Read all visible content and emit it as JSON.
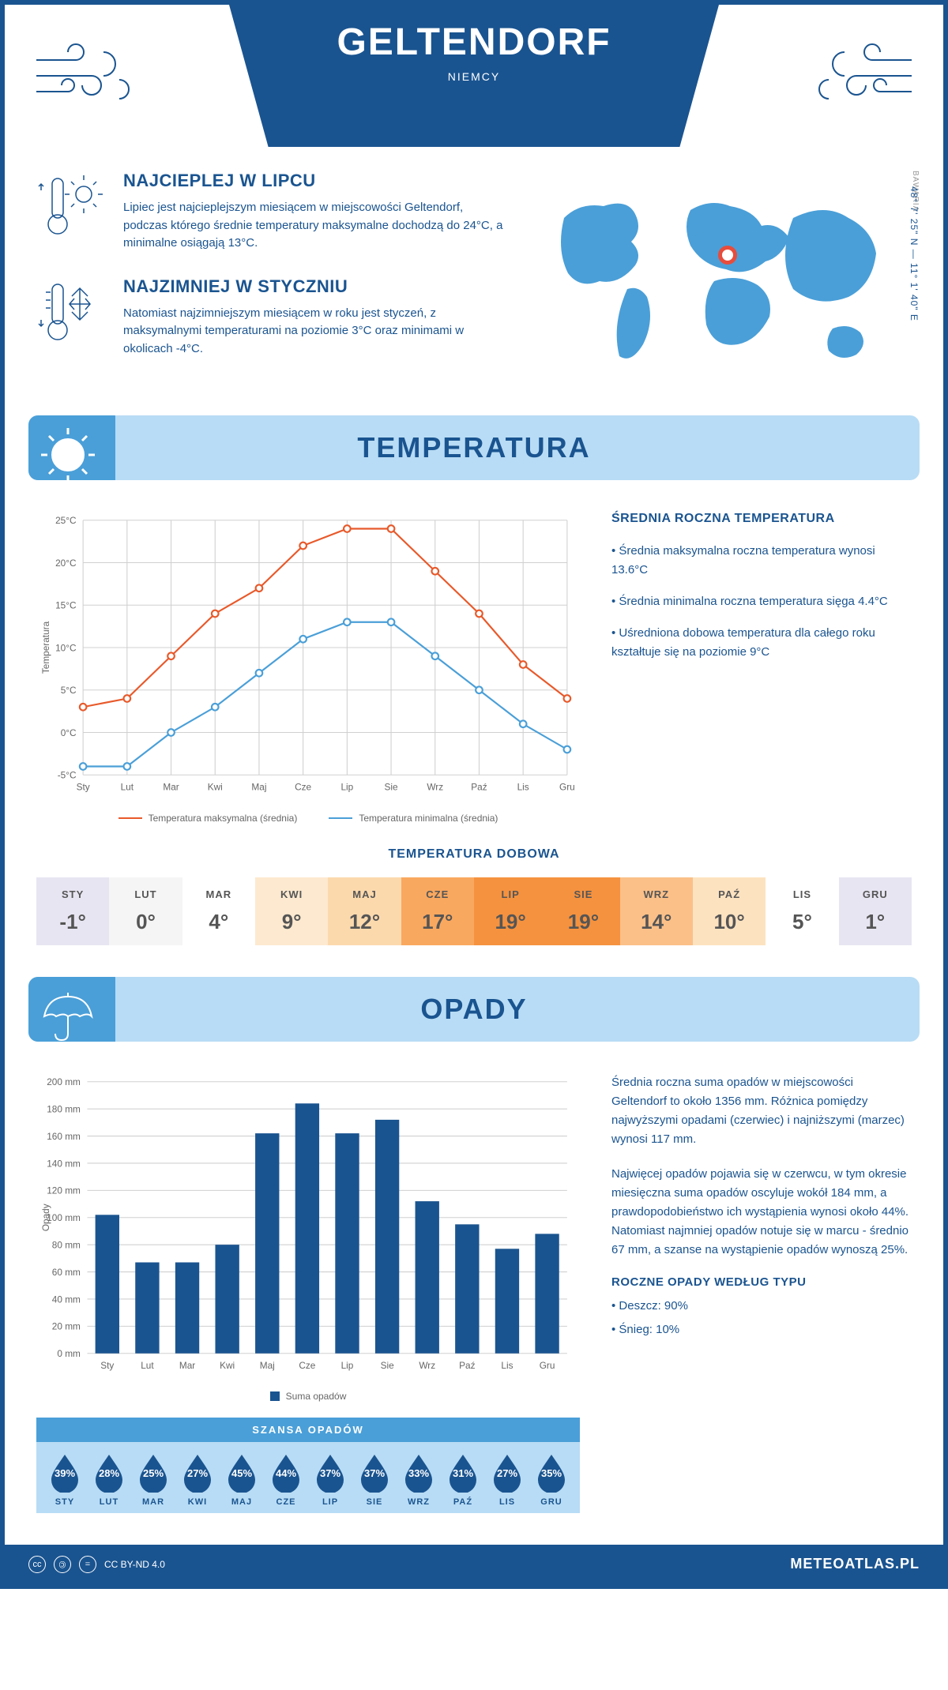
{
  "header": {
    "city": "GELTENDORF",
    "country": "NIEMCY"
  },
  "location": {
    "coords": "48° 7' 25\" N — 11° 1' 40\" E",
    "region": "BAWARIA"
  },
  "info": {
    "warmest": {
      "title": "NAJCIEPLEJ W LIPCU",
      "text": "Lipiec jest najcieplejszym miesiącem w miejscowości Geltendorf, podczas którego średnie temperatury maksymalne dochodzą do 24°C, a minimalne osiągają 13°C."
    },
    "coldest": {
      "title": "NAJZIMNIEJ W STYCZNIU",
      "text": "Natomiast najzimniejszym miesiącem w roku jest styczeń, z maksymalnymi temperaturami na poziomie 3°C oraz minimami w okolicach -4°C."
    }
  },
  "temperature": {
    "section_title": "TEMPERATURA",
    "ylabel": "Temperatura",
    "months": [
      "Sty",
      "Lut",
      "Mar",
      "Kwi",
      "Maj",
      "Cze",
      "Lip",
      "Sie",
      "Wrz",
      "Paź",
      "Lis",
      "Gru"
    ],
    "max_series": [
      3,
      4,
      9,
      14,
      17,
      22,
      24,
      24,
      19,
      14,
      8,
      4
    ],
    "min_series": [
      -4,
      -4,
      0,
      3,
      7,
      11,
      13,
      13,
      9,
      5,
      1,
      -2
    ],
    "max_color": "#e8592a",
    "min_color": "#4a9fd8",
    "ylim": [
      -5,
      25
    ],
    "ytick_step": 5,
    "grid_color": "#d0d0d0",
    "legend_max": "Temperatura maksymalna (średnia)",
    "legend_min": "Temperatura minimalna (średnia)",
    "sidebar": {
      "title": "ŚREDNIA ROCZNA TEMPERATURA",
      "facts": [
        "• Średnia maksymalna roczna temperatura wynosi 13.6°C",
        "• Średnia minimalna roczna temperatura sięga 4.4°C",
        "• Uśredniona dobowa temperatura dla całego roku kształtuje się na poziomie 9°C"
      ]
    }
  },
  "daily_temp": {
    "title": "TEMPERATURA DOBOWA",
    "months": [
      "STY",
      "LUT",
      "MAR",
      "KWI",
      "MAJ",
      "CZE",
      "LIP",
      "SIE",
      "WRZ",
      "PAŹ",
      "LIS",
      "GRU"
    ],
    "values": [
      "-1°",
      "0°",
      "4°",
      "9°",
      "12°",
      "17°",
      "19°",
      "19°",
      "14°",
      "10°",
      "5°",
      "1°"
    ],
    "colors": [
      "#e8e5f2",
      "#f5f5f5",
      "#ffffff",
      "#fde9cf",
      "#fcd9ad",
      "#f9a85f",
      "#f5923f",
      "#f5923f",
      "#fbc088",
      "#fde2c0",
      "#ffffff",
      "#e8e5f2"
    ]
  },
  "precipitation": {
    "section_title": "OPADY",
    "ylabel": "Opady",
    "months": [
      "Sty",
      "Lut",
      "Mar",
      "Kwi",
      "Maj",
      "Cze",
      "Lip",
      "Sie",
      "Wrz",
      "Paź",
      "Lis",
      "Gru"
    ],
    "values": [
      102,
      67,
      67,
      80,
      162,
      184,
      162,
      172,
      112,
      95,
      77,
      88
    ],
    "bar_color": "#1a5490",
    "ylim": [
      0,
      200
    ],
    "ytick_step": 20,
    "grid_color": "#d0d0d0",
    "legend": "Suma opadów",
    "sidebar": {
      "paragraphs": [
        "Średnia roczna suma opadów w miejscowości Geltendorf to około 1356 mm. Różnica pomiędzy najwyższymi opadami (czerwiec) i najniższymi (marzec) wynosi 117 mm.",
        "Najwięcej opadów pojawia się w czerwcu, w tym okresie miesięczna suma opadów oscyluje wokół 184 mm, a prawdopodobieństwo ich wystąpienia wynosi około 44%. Natomiast najmniej opadów notuje się w marcu - średnio 67 mm, a szanse na wystąpienie opadów wynoszą 25%."
      ],
      "types_title": "ROCZNE OPADY WEDŁUG TYPU",
      "types": [
        "• Deszcz: 90%",
        "• Śnieg: 10%"
      ]
    }
  },
  "chance": {
    "title": "SZANSA OPADÓW",
    "months": [
      "STY",
      "LUT",
      "MAR",
      "KWI",
      "MAJ",
      "CZE",
      "LIP",
      "SIE",
      "WRZ",
      "PAŹ",
      "LIS",
      "GRU"
    ],
    "values": [
      "39%",
      "28%",
      "25%",
      "27%",
      "45%",
      "44%",
      "37%",
      "37%",
      "33%",
      "31%",
      "27%",
      "35%"
    ],
    "drop_color": "#1a5490",
    "bg_color": "#b8dcf5",
    "header_bg": "#4a9fd8"
  },
  "footer": {
    "license": "CC BY-ND 4.0",
    "site": "METEOATLAS.PL"
  }
}
